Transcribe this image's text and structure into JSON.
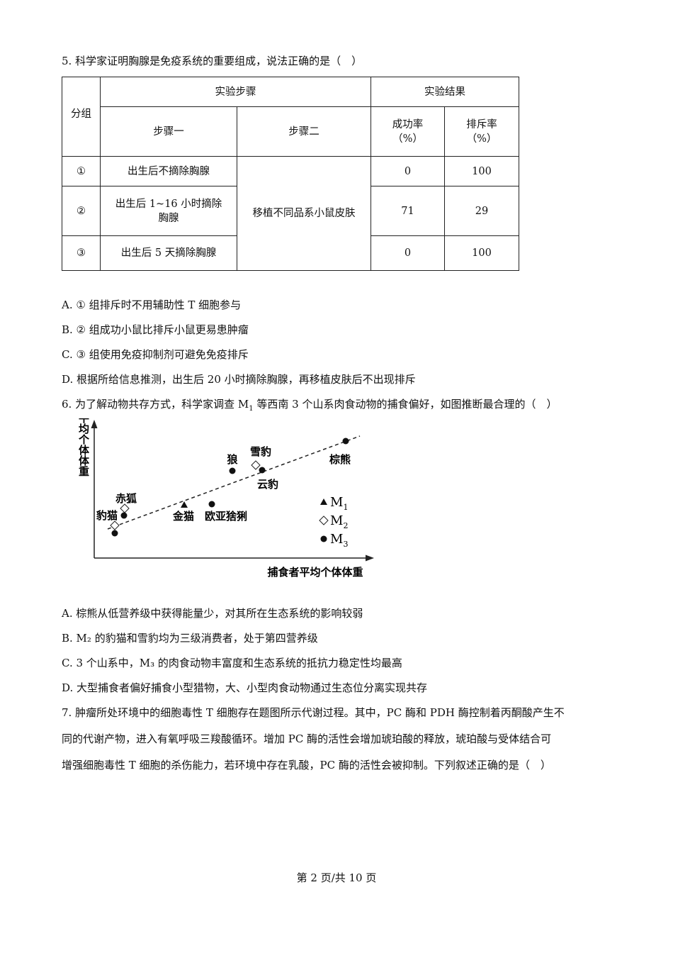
{
  "q5": {
    "stem": "5. 科学家证明胸腺是免疫系统的重要组成，说法正确的是（　）",
    "table": {
      "group_header": "分组",
      "steps_header": "实验步骤",
      "results_header": "实验结果",
      "step1_header": "步骤一",
      "step2_header": "步骤二",
      "success_header": "成功率",
      "success_unit": "（%）",
      "reject_header": "排斥率",
      "reject_unit": "（%）",
      "step2_shared": "移植不同品系小鼠皮肤",
      "rows": [
        {
          "group": "①",
          "step1": "出生后不摘除胸腺",
          "success": "0",
          "reject": "100"
        },
        {
          "group": "②",
          "step1": "出生后 1~16 小时摘除胸腺",
          "success": "71",
          "reject": "29"
        },
        {
          "group": "③",
          "step1": "出生后 5 天摘除胸腺",
          "success": "0",
          "reject": "100"
        }
      ]
    },
    "options": [
      "A. ① 组排斥时不用辅助性 T 细胞参与",
      "B. ② 组成功小鼠比排斥小鼠更易患肿瘤",
      "C. ③ 组使用免疫抑制剂可避免免疫排斥",
      "D. 根据所给信息推测，出生后 20 小时摘除胸腺，再移植皮肤后不出现排斥"
    ]
  },
  "q6": {
    "stem_pre": "6. 为了解动物共存方式，科学家调查 M",
    "stem_sub": "1",
    "stem_post": " 等西南 3 个山系肉食动物的捕食偏好，如图推断最合理的（　）",
    "figure": {
      "ylabel": "猎物平均个体体重",
      "xlabel": "捕食者平均个体体重",
      "legend": [
        {
          "marker": "triangle",
          "label": "M",
          "sub": "1"
        },
        {
          "marker": "diamond",
          "label": "M",
          "sub": "2"
        },
        {
          "marker": "dot",
          "label": "M",
          "sub": "3"
        }
      ],
      "animals": {
        "brown_bear": "棕熊",
        "wolf": "狼",
        "snow_leopard": "雪豹",
        "clouded_leopard": "云豹",
        "red_fox": "赤狐",
        "leopard_cat": "豹猫",
        "golden_cat": "金猫",
        "lynx": "欧亚猞猁"
      }
    },
    "options": [
      "A. 棕熊从低营养级中获得能量少，对其所在生态系统的影响较弱",
      "B. M₂ 的豹猫和雪豹均为三级消费者，处于第四营养级",
      "C. 3 个山系中，M₃ 的肉食动物丰富度和生态系统的抵抗力稳定性均最高",
      "D. 大型捕食者偏好捕食小型猎物，大、小型肉食动物通过生态位分离实现共存"
    ]
  },
  "q7": {
    "lines": [
      "7. 肿瘤所处环境中的细胞毒性 T 细胞存在题图所示代谢过程。其中，PC 酶和 PDH 酶控制着丙酮酸产生不",
      "同的代谢产物，进入有氧呼吸三羧酸循环。增加 PC 酶的活性会增加琥珀酸的释放，琥珀酸与受体结合可",
      "增强细胞毒性 T 细胞的杀伤能力，若环境中存在乳酸，PC 酶的活性会被抑制。下列叙述正确的是（　）"
    ]
  },
  "footer": "第 2 页/共 10 页"
}
